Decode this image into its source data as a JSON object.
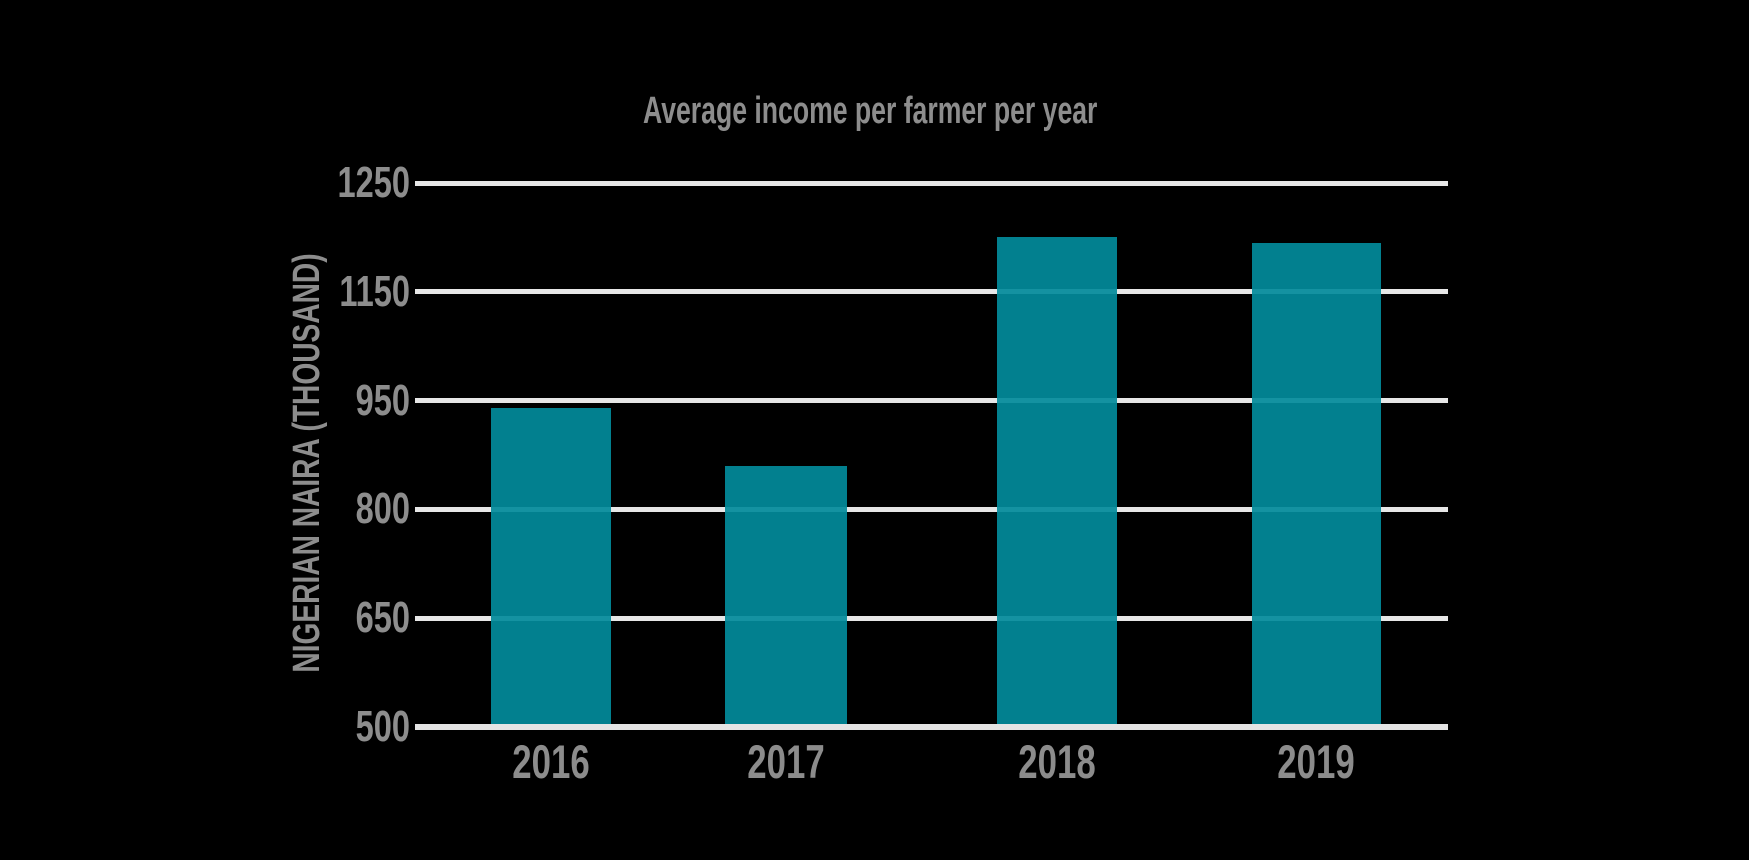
{
  "title": "Average income per farmer per year",
  "chart_data": {
    "type": "bar",
    "title": "Average income per farmer per year",
    "xlabel": "",
    "ylabel": "NIGERIAN NAIRA (THOUSAND)",
    "categories": [
      "2016",
      "2017",
      "2018",
      "2019"
    ],
    "values": [
      940,
      860,
      1200,
      1195
    ],
    "series_name": "Average income per farmer per year (thousand naira)",
    "yticks": [
      1250,
      1150,
      950,
      800,
      650,
      500
    ],
    "ylim": [
      500,
      1250
    ],
    "grid": true,
    "legend_position": "none",
    "axis_note": "y tick labels evenly spaced as displayed: 500, 650, 800, 950, 1150, 1250",
    "colors": {
      "bar": "#02808F",
      "bar_base": "#028B9B",
      "gridline": "#E7E7E7",
      "baseline": "#E4E4E4",
      "text": "#8D8D8D",
      "background": "#000000"
    }
  }
}
